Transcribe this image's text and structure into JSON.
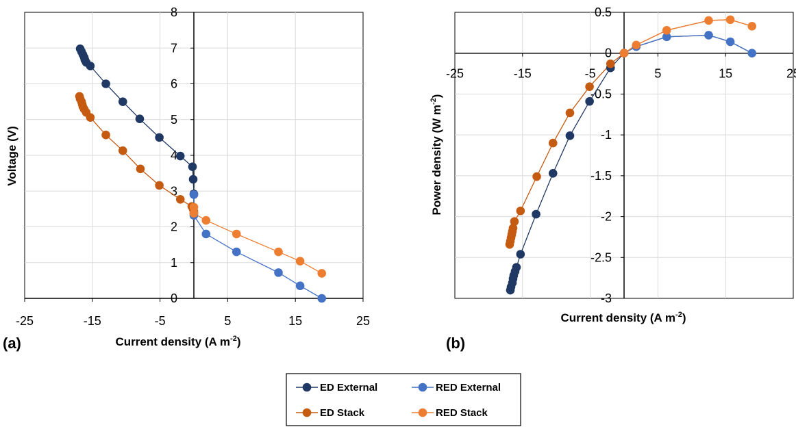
{
  "chart_data": [
    {
      "type": "scatter",
      "panel_label": "(a)",
      "xlabel": "Current density (A m",
      "xlabel_sup": "-2",
      "xlabel_end": ")",
      "ylabel": "Voltage (V)",
      "xlim": [
        -25,
        25
      ],
      "ylim": [
        0,
        8
      ],
      "x_ticks": [
        "-25",
        "-15",
        "-5",
        "5",
        "15",
        "25"
      ],
      "y_ticks": [
        "0",
        "1",
        "2",
        "3",
        "4",
        "5",
        "6",
        "7",
        "8"
      ],
      "grid": true,
      "series": [
        {
          "name": "ED External",
          "color": "#203864",
          "x": [
            -16.8,
            -16.6,
            -16.4,
            -16.2,
            -16.1,
            -15.9,
            -15.3,
            -13.0,
            -10.5,
            -8.0,
            -5.1,
            -2.0,
            -0.2,
            -0.1,
            0.0,
            0.0
          ],
          "y": [
            6.98,
            6.9,
            6.82,
            6.74,
            6.67,
            6.6,
            6.5,
            6.0,
            5.5,
            5.02,
            4.5,
            3.98,
            3.68,
            3.33,
            2.92,
            2.38
          ]
        },
        {
          "name": "RED External",
          "color": "#4472C4",
          "x": [
            0.0,
            0.0,
            1.8,
            6.3,
            12.5,
            15.7,
            18.9
          ],
          "y": [
            2.9,
            2.32,
            1.8,
            1.3,
            0.72,
            0.35,
            0.0
          ]
        },
        {
          "name": "ED Stack",
          "color": "#C55A11",
          "x": [
            -16.9,
            -16.8,
            -16.6,
            -16.5,
            -16.4,
            -16.2,
            -15.9,
            -15.3,
            -13.0,
            -10.5,
            -7.9,
            -5.1,
            -2.0,
            -0.3,
            -0.1,
            0.0
          ],
          "y": [
            5.65,
            5.58,
            5.5,
            5.43,
            5.36,
            5.29,
            5.2,
            5.06,
            4.57,
            4.13,
            3.62,
            3.16,
            2.77,
            2.57,
            2.5,
            2.43
          ]
        },
        {
          "name": "RED Stack",
          "color": "#ED7D31",
          "x": [
            0.0,
            0.0,
            1.8,
            6.3,
            12.5,
            15.7,
            18.9
          ],
          "y": [
            2.55,
            2.38,
            2.18,
            1.8,
            1.3,
            1.04,
            0.7
          ]
        }
      ]
    },
    {
      "type": "scatter",
      "panel_label": "(b)",
      "xlabel": "Current density (A m",
      "xlabel_sup": "-2",
      "xlabel_end": ")",
      "ylabel": "Power density (W m",
      "ylabel_sup": "-2",
      "ylabel_end": ")",
      "xlim": [
        -25,
        25
      ],
      "ylim": [
        -3,
        0.5
      ],
      "x_ticks": [
        "-25",
        "-15",
        "-5",
        "5",
        "15",
        "25"
      ],
      "y_ticks": [
        "0.5",
        "0",
        "-0.5",
        "-1",
        "-1.5",
        "-2",
        "-2.5",
        "-3"
      ],
      "grid": true,
      "series": [
        {
          "name": "ED External",
          "color": "#203864",
          "x": [
            -16.8,
            -16.7,
            -16.5,
            -16.4,
            -16.3,
            -16.1,
            -15.9,
            -15.3,
            -13.0,
            -10.5,
            -8.0,
            -5.1,
            -2.0,
            0.0
          ],
          "y": [
            -2.9,
            -2.86,
            -2.81,
            -2.76,
            -2.72,
            -2.67,
            -2.62,
            -2.46,
            -1.97,
            -1.47,
            -1.01,
            -0.59,
            -0.18,
            0.0
          ],
          "line_x": [
            -16.8,
            -16.5,
            -16.1,
            -15.9,
            -15.3,
            -13.0,
            -10.5,
            -8.0,
            -5.1,
            -2.0,
            0.0,
            1.8,
            6.3,
            12.5,
            15.7,
            18.9
          ],
          "line_y": [
            -2.9,
            -2.81,
            -2.67,
            -2.62,
            -2.46,
            -1.97,
            -1.47,
            -1.01,
            -0.59,
            -0.18,
            0.0,
            0.08,
            0.2,
            0.22,
            0.14,
            0.0
          ]
        },
        {
          "name": "RED External",
          "color": "#4472C4",
          "x": [
            0.0,
            1.8,
            6.3,
            12.5,
            15.7,
            18.9
          ],
          "y": [
            0.0,
            0.08,
            0.2,
            0.22,
            0.14,
            0.0
          ]
        },
        {
          "name": "ED Stack",
          "color": "#C55A11",
          "x": [
            -16.9,
            -16.8,
            -16.7,
            -16.6,
            -16.5,
            -16.4,
            -16.2,
            -15.3,
            -12.9,
            -10.5,
            -8.0,
            -5.1,
            -2.0,
            0.0
          ],
          "y": [
            -2.34,
            -2.3,
            -2.26,
            -2.22,
            -2.18,
            -2.14,
            -2.06,
            -1.93,
            -1.51,
            -1.1,
            -0.73,
            -0.41,
            -0.13,
            0.0
          ],
          "line_x": [
            -16.9,
            -16.6,
            -16.2,
            -15.3,
            -12.9,
            -10.5,
            -8.0,
            -5.1,
            -2.0,
            0.0,
            1.8,
            6.3,
            12.5,
            15.7,
            18.9
          ],
          "line_y": [
            -2.34,
            -2.22,
            -2.06,
            -1.93,
            -1.51,
            -1.1,
            -0.73,
            -0.41,
            -0.13,
            0.0,
            0.1,
            0.28,
            0.4,
            0.41,
            0.33
          ]
        },
        {
          "name": "RED Stack",
          "color": "#ED7D31",
          "x": [
            0.0,
            1.8,
            6.3,
            12.5,
            15.7,
            18.9
          ],
          "y": [
            0.0,
            0.1,
            0.28,
            0.4,
            0.41,
            0.33
          ]
        }
      ]
    }
  ],
  "legend": [
    {
      "label": "ED External",
      "color": "#203864"
    },
    {
      "label": "RED External",
      "color": "#4472C4"
    },
    {
      "label": "ED Stack",
      "color": "#C55A11"
    },
    {
      "label": "RED Stack",
      "color": "#ED7D31"
    }
  ]
}
